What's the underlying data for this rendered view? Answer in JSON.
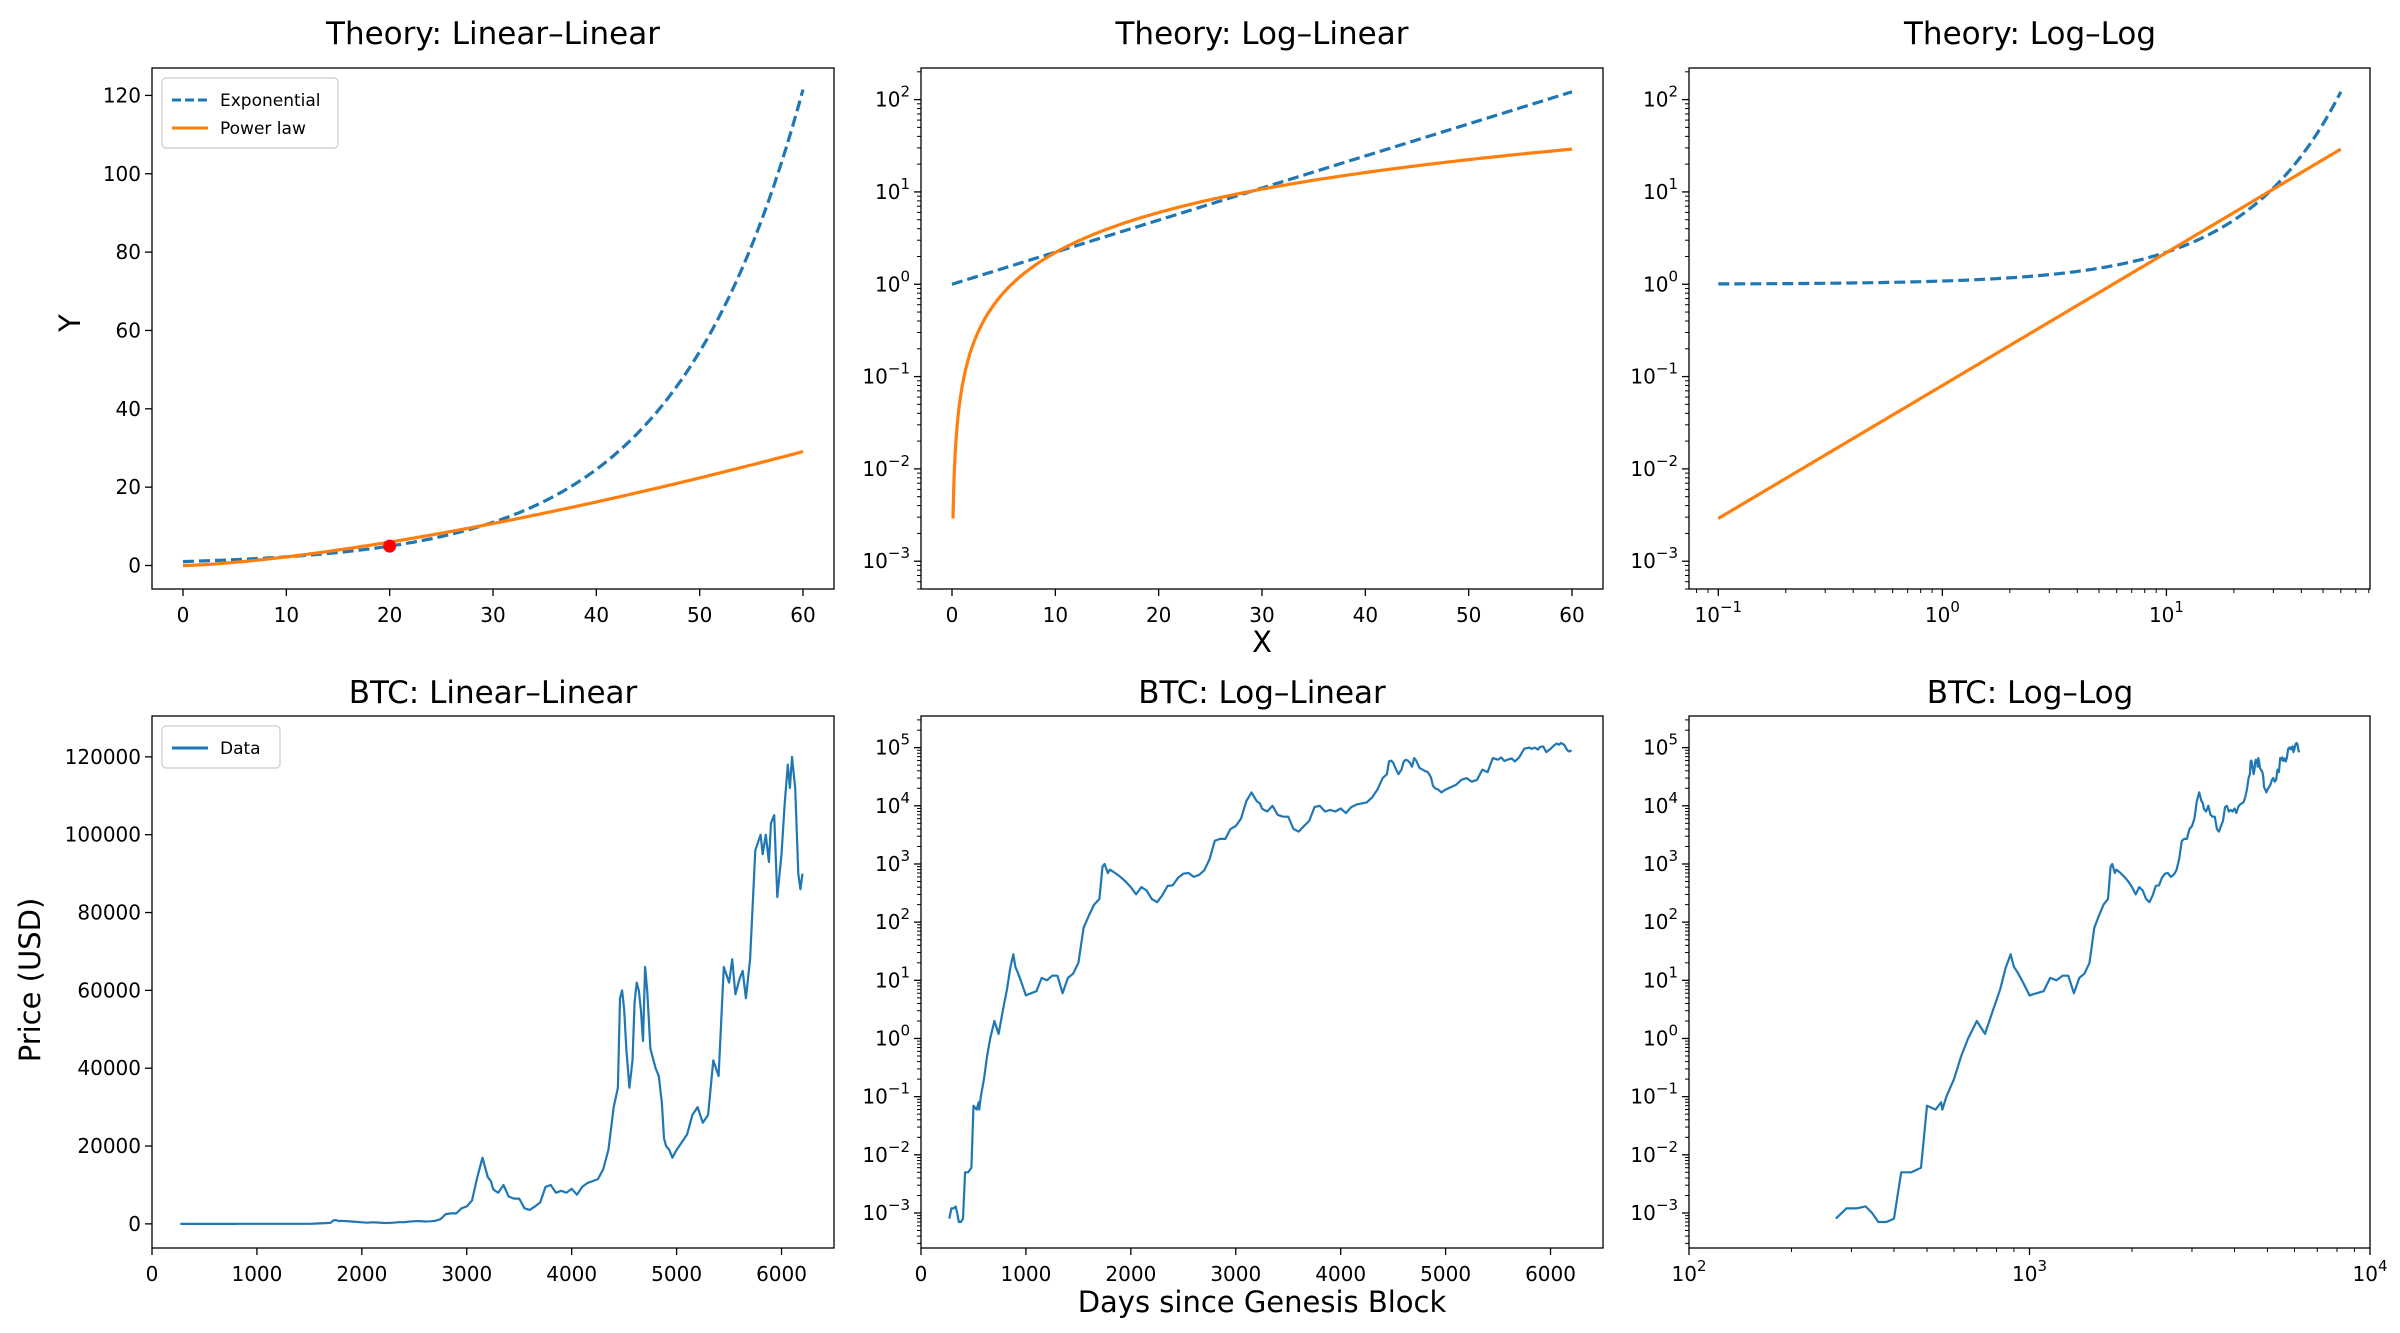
{
  "chart_data": [
    {
      "type": "line",
      "title": "Theory: Linear–Linear",
      "xlabel": "",
      "ylabel": "Y",
      "xscale": "linear",
      "yscale": "linear",
      "xlim": [
        -3,
        63
      ],
      "ylim": [
        -6,
        127
      ],
      "xticks": [
        0,
        10,
        20,
        30,
        40,
        50,
        60
      ],
      "xtick_labels": [
        "0",
        "10",
        "20",
        "30",
        "40",
        "50",
        "60"
      ],
      "yticks": [
        0,
        20,
        40,
        60,
        80,
        100,
        120
      ],
      "ytick_labels": [
        "0",
        "20",
        "40",
        "60",
        "80",
        "100",
        "120"
      ],
      "grid": false,
      "legend": "top-left",
      "series": [
        {
          "name": "Exponential",
          "style": "dashed",
          "color": "#1f77b4",
          "func": "exp",
          "a": 0.08,
          "x_range": [
            0,
            60
          ]
        },
        {
          "name": "Power law",
          "style": "solid",
          "color": "#ff7f0e",
          "func": "pow",
          "k": 0.08,
          "p": 1.44,
          "x_range": [
            0,
            60
          ]
        }
      ],
      "markers": [
        {
          "x": 20,
          "y": 4.95,
          "color": "#ff0000"
        }
      ]
    },
    {
      "type": "line",
      "title": "Theory: Log–Linear",
      "xlabel": "X",
      "ylabel": "",
      "xscale": "linear",
      "yscale": "log",
      "xlim": [
        -3,
        63
      ],
      "ylim": [
        0.0005,
        220
      ],
      "xticks": [
        0,
        10,
        20,
        30,
        40,
        50,
        60
      ],
      "xtick_labels": [
        "0",
        "10",
        "20",
        "30",
        "40",
        "50",
        "60"
      ],
      "yticks": [
        0.001,
        0.01,
        0.1,
        1,
        10,
        100
      ],
      "ytick_labels": [
        "10^-3",
        "10^-2",
        "10^-1",
        "10^0",
        "10^1",
        "10^2"
      ],
      "grid": false,
      "series": [
        {
          "style": "dashed",
          "color": "#1f77b4",
          "func": "exp",
          "a": 0.08,
          "x_range": [
            0,
            60
          ]
        },
        {
          "style": "solid",
          "color": "#ff7f0e",
          "func": "pow",
          "k": 0.08,
          "p": 1.44,
          "x_range": [
            0.1,
            60
          ]
        }
      ]
    },
    {
      "type": "line",
      "title": "Theory: Log–Log",
      "xlabel": "",
      "ylabel": "",
      "xscale": "log",
      "yscale": "log",
      "xlim": [
        0.074,
        81
      ],
      "ylim": [
        0.0005,
        220
      ],
      "xticks": [
        0.1,
        1,
        10
      ],
      "xtick_labels": [
        "10^-1",
        "10^0",
        "10^1"
      ],
      "yticks": [
        0.001,
        0.01,
        0.1,
        1,
        10,
        100
      ],
      "ytick_labels": [
        "10^-3",
        "10^-2",
        "10^-1",
        "10^0",
        "10^1",
        "10^2"
      ],
      "grid": false,
      "series": [
        {
          "style": "dashed",
          "color": "#1f77b4",
          "func": "exp",
          "a": 0.08,
          "x_range": [
            0.1,
            60
          ]
        },
        {
          "style": "solid",
          "color": "#ff7f0e",
          "func": "pow",
          "k": 0.08,
          "p": 1.44,
          "x_range": [
            0.1,
            60
          ]
        }
      ]
    },
    {
      "type": "line",
      "title": "BTC: Linear–Linear",
      "xlabel": "",
      "ylabel": "Price (USD)",
      "xscale": "linear",
      "yscale": "linear",
      "xlim": [
        0,
        6500
      ],
      "ylim": [
        -6200,
        130500
      ],
      "xticks": [
        0,
        1000,
        2000,
        3000,
        4000,
        5000,
        6000
      ],
      "xtick_labels": [
        "0",
        "1000",
        "2000",
        "3000",
        "4000",
        "5000",
        "6000"
      ],
      "yticks": [
        0,
        20000,
        40000,
        60000,
        80000,
        100000,
        120000
      ],
      "ytick_labels": [
        "0",
        "20000",
        "40000",
        "60000",
        "80000",
        "100000",
        "120000"
      ],
      "grid": false,
      "legend": "top-left",
      "series": [
        {
          "name": "Data",
          "style": "solid",
          "color": "#1f77b4",
          "source": "btc"
        }
      ]
    },
    {
      "type": "line",
      "title": "BTC: Log–Linear",
      "xlabel": "Days since Genesis Block",
      "ylabel": "",
      "xscale": "linear",
      "yscale": "log",
      "xlim": [
        0,
        6500
      ],
      "ylim": [
        0.00025,
        350000
      ],
      "xticks": [
        0,
        1000,
        2000,
        3000,
        4000,
        5000,
        6000
      ],
      "xtick_labels": [
        "0",
        "1000",
        "2000",
        "3000",
        "4000",
        "5000",
        "6000"
      ],
      "yticks": [
        0.001,
        0.01,
        0.1,
        1,
        10,
        100,
        1000,
        10000,
        100000
      ],
      "ytick_labels": [
        "10^-3",
        "10^-2",
        "10^-1",
        "10^0",
        "10^1",
        "10^2",
        "10^3",
        "10^4",
        "10^5"
      ],
      "grid": false,
      "series": [
        {
          "style": "solid",
          "color": "#1f77b4",
          "source": "btc"
        }
      ]
    },
    {
      "type": "line",
      "title": "BTC: Log–Log",
      "xlabel": "",
      "ylabel": "",
      "xscale": "log",
      "yscale": "log",
      "xlim": [
        100,
        10000
      ],
      "ylim": [
        0.00025,
        350000
      ],
      "xticks": [
        100,
        1000,
        10000
      ],
      "xtick_labels": [
        "10^2",
        "10^3",
        "10^4"
      ],
      "yticks": [
        0.001,
        0.01,
        0.1,
        1,
        10,
        100,
        1000,
        10000,
        100000
      ],
      "ytick_labels": [
        "10^-3",
        "10^-2",
        "10^-1",
        "10^0",
        "10^1",
        "10^2",
        "10^3",
        "10^4",
        "10^5"
      ],
      "grid": false,
      "series": [
        {
          "style": "solid",
          "color": "#1f77b4",
          "source": "btc"
        }
      ]
    }
  ],
  "btc_series": {
    "x": [
      270,
      290,
      310,
      330,
      345,
      360,
      380,
      400,
      420,
      450,
      480,
      500,
      530,
      550,
      555,
      570,
      600,
      630,
      660,
      700,
      740,
      780,
      820,
      850,
      880,
      900,
      920,
      950,
      980,
      1000,
      1050,
      1100,
      1150,
      1200,
      1250,
      1300,
      1350,
      1400,
      1450,
      1500,
      1550,
      1600,
      1650,
      1700,
      1730,
      1750,
      1780,
      1800,
      1850,
      1900,
      1950,
      2000,
      2050,
      2100,
      2150,
      2200,
      2250,
      2300,
      2350,
      2400,
      2450,
      2500,
      2550,
      2600,
      2650,
      2700,
      2750,
      2800,
      2850,
      2900,
      2950,
      3000,
      3050,
      3100,
      3150,
      3200,
      3230,
      3250,
      3270,
      3300,
      3350,
      3400,
      3450,
      3500,
      3550,
      3600,
      3650,
      3700,
      3750,
      3800,
      3850,
      3900,
      3950,
      4000,
      4050,
      4100,
      4150,
      4200,
      4250,
      4300,
      4350,
      4400,
      4440,
      4460,
      4480,
      4500,
      4520,
      4550,
      4580,
      4600,
      4620,
      4640,
      4660,
      4680,
      4700,
      4720,
      4750,
      4780,
      4800,
      4830,
      4860,
      4880,
      4900,
      4930,
      4960,
      5000,
      5050,
      5100,
      5150,
      5200,
      5250,
      5300,
      5350,
      5400,
      5450,
      5500,
      5530,
      5560,
      5600,
      5630,
      5660,
      5700,
      5750,
      5800,
      5820,
      5850,
      5880,
      5900,
      5930,
      5960,
      6000,
      6030,
      6060,
      6080,
      6100,
      6130,
      6160,
      6180,
      6200
    ],
    "y": [
      0.0008,
      0.0012,
      0.0012,
      0.0013,
      0.001,
      0.0007,
      0.0007,
      0.0008,
      0.005,
      0.005,
      0.006,
      0.07,
      0.06,
      0.08,
      0.06,
      0.1,
      0.2,
      0.5,
      1.0,
      2.0,
      1.2,
      3,
      7,
      16,
      28,
      17,
      14,
      10,
      7,
      5.5,
      6,
      6.5,
      11,
      10,
      12,
      12,
      6,
      11,
      13,
      20,
      80,
      130,
      200,
      250,
      900,
      1000,
      700,
      800,
      700,
      600,
      500,
      400,
      300,
      400,
      350,
      250,
      220,
      290,
      420,
      430,
      580,
      680,
      700,
      600,
      650,
      780,
      1200,
      2500,
      2700,
      2700,
      4000,
      4500,
      6000,
      12000,
      17000,
      12000,
      11000,
      9000,
      8500,
      8000,
      10000,
      7000,
      6500,
      6500,
      4000,
      3600,
      4500,
      5500,
      9500,
      10000,
      8000,
      8500,
      8000,
      9000,
      7500,
      9500,
      10500,
      11000,
      11500,
      14000,
      19000,
      30000,
      35000,
      58000,
      60000,
      55000,
      45000,
      35000,
      42000,
      57000,
      62000,
      60000,
      55000,
      47000,
      66000,
      60000,
      45000,
      42000,
      40000,
      38000,
      31000,
      22000,
      20000,
      19000,
      17000,
      19000,
      21000,
      23000,
      28000,
      30000,
      26000,
      28000,
      42000,
      38000,
      66000,
      62000,
      68000,
      59000,
      63000,
      65000,
      58000,
      68000,
      96000,
      100000,
      95000,
      100000,
      93000,
      103000,
      105000,
      84000,
      95000,
      108000,
      118000,
      112000,
      120000,
      112000,
      90000,
      86000,
      90000
    ]
  }
}
